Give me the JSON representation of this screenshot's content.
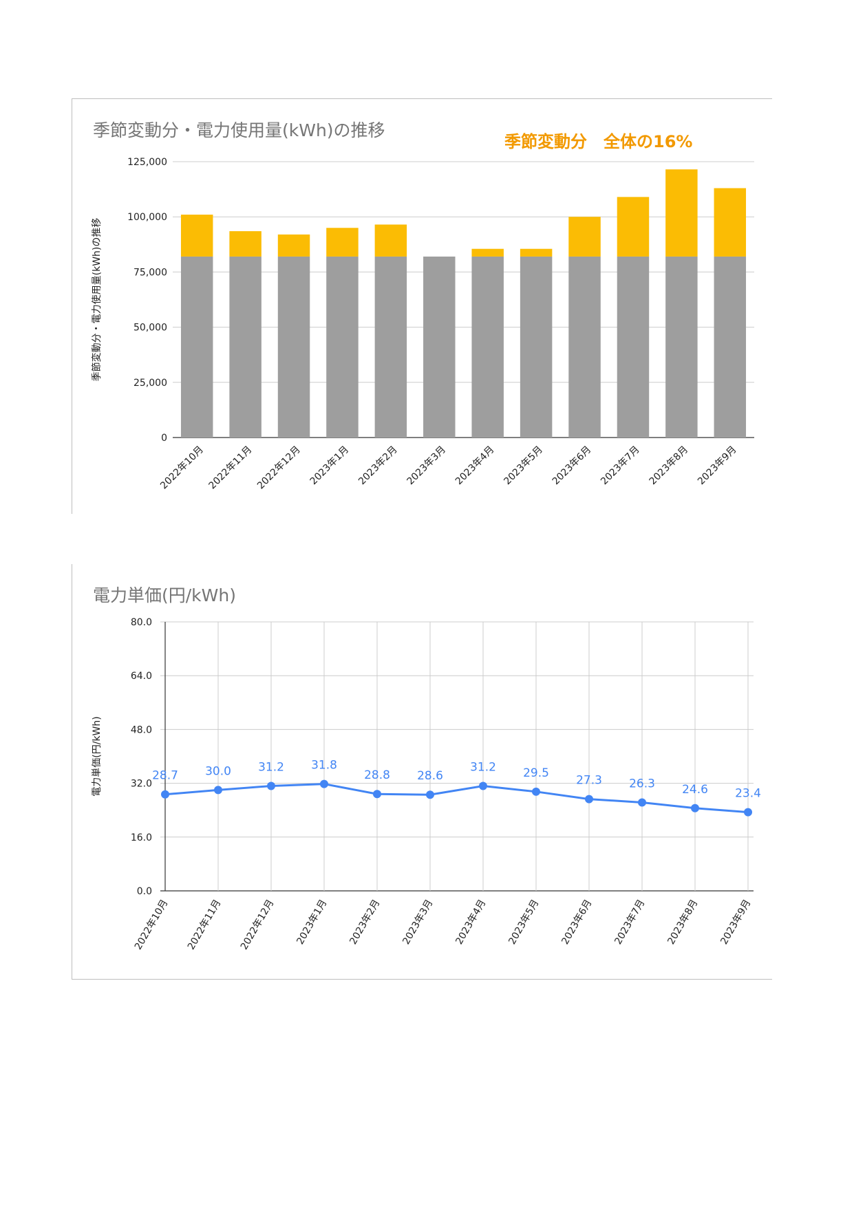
{
  "chart_data": [
    {
      "type": "bar",
      "stacked": true,
      "title": "季節変動分・電力使用量(kWh)の推移",
      "annotation": "季節変動分　全体の16%",
      "ylabel": "季節変動分・電力使用量(kWh)の推移",
      "xlabel": "",
      "categories": [
        "2022年10月",
        "2022年11月",
        "2022年12月",
        "2023年1月",
        "2023年2月",
        "2023年3月",
        "2023年4月",
        "2023年5月",
        "2023年6月",
        "2023年7月",
        "2023年8月",
        "2023年9月"
      ],
      "series": [
        {
          "color": "#9e9e9e",
          "values": [
            82000,
            82000,
            82000,
            82000,
            82000,
            82000,
            82000,
            82000,
            82000,
            82000,
            82000,
            82000
          ]
        },
        {
          "color": "#fbbc04",
          "values": [
            19000,
            11500,
            10000,
            13000,
            14500,
            0,
            3500,
            3500,
            18000,
            27000,
            39500,
            31000
          ]
        }
      ],
      "ylim": [
        0,
        125000
      ],
      "yticks": [
        "0",
        "25,000",
        "50,000",
        "75,000",
        "100,000",
        "125,000"
      ],
      "ytick_values": [
        0,
        25000,
        50000,
        75000,
        100000,
        125000
      ],
      "grid": true
    },
    {
      "type": "line",
      "title": "電力単価(円/kWh)",
      "ylabel": "電力単価(円/kWh)",
      "xlabel": "",
      "categories": [
        "2022年10月",
        "2022年11月",
        "2022年12月",
        "2023年1月",
        "2023年2月",
        "2023年3月",
        "2023年4月",
        "2023年5月",
        "2023年6月",
        "2023年7月",
        "2023年8月",
        "2023年9月"
      ],
      "series": [
        {
          "color": "#4285f4",
          "values": [
            28.7,
            30.0,
            31.2,
            31.8,
            28.8,
            28.6,
            31.2,
            29.5,
            27.3,
            26.3,
            24.6,
            23.4
          ]
        }
      ],
      "data_labels": [
        "28.7",
        "30.0",
        "31.2",
        "31.8",
        "28.8",
        "28.6",
        "31.2",
        "29.5",
        "27.3",
        "26.3",
        "24.6",
        "23.4"
      ],
      "ylim": [
        0,
        80
      ],
      "yticks": [
        "0.0",
        "16.0",
        "32.0",
        "48.0",
        "64.0",
        "80.0"
      ],
      "ytick_values": [
        0,
        16,
        32,
        48,
        64,
        80
      ],
      "grid": true
    }
  ]
}
